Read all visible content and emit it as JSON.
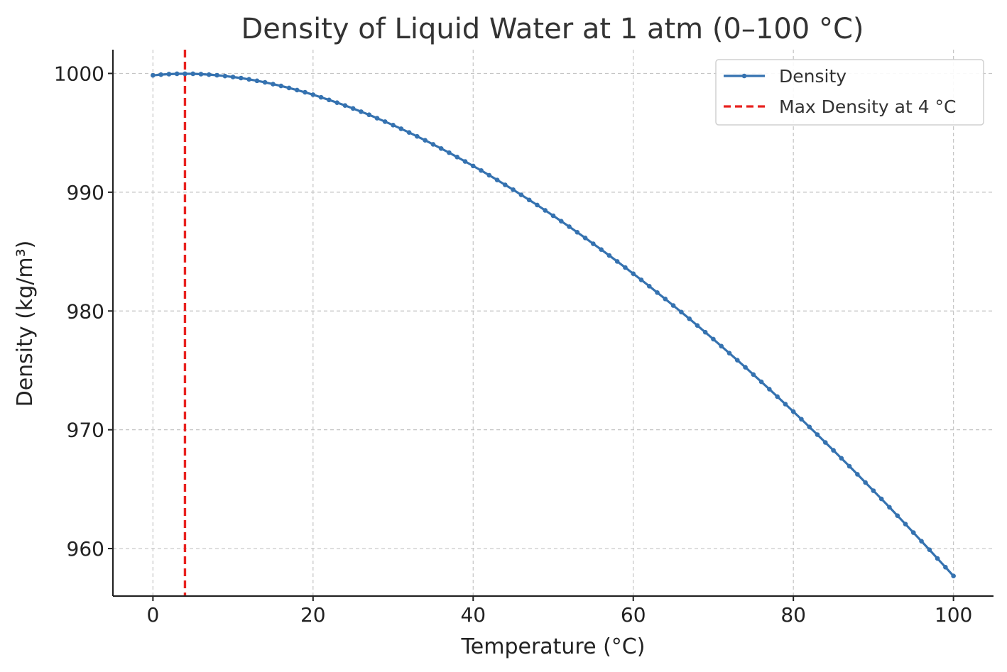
{
  "chart_data": {
    "type": "line",
    "title": "Density of Liquid Water at 1 atm (0–100 °C)",
    "xlabel": "Temperature (°C)",
    "ylabel": "Density (kg/m³)",
    "xlim": [
      -5,
      105
    ],
    "ylim": [
      956,
      1002
    ],
    "x_ticks": [
      0,
      20,
      40,
      60,
      80,
      100
    ],
    "y_ticks": [
      960,
      970,
      980,
      990,
      1000
    ],
    "x_tick_labels": [
      "0",
      "20",
      "40",
      "60",
      "80",
      "100"
    ],
    "y_tick_labels": [
      "960",
      "970",
      "980",
      "990",
      "1000"
    ],
    "grid": true,
    "legend_position": "top-right",
    "series": [
      {
        "name": "Density",
        "color": "#3572b0",
        "marker": "dot",
        "x": [
          0,
          1,
          2,
          3,
          4,
          5,
          6,
          7,
          8,
          9,
          10,
          11,
          12,
          13,
          14,
          15,
          16,
          17,
          18,
          19,
          20,
          21,
          22,
          23,
          24,
          25,
          26,
          27,
          28,
          29,
          30,
          31,
          32,
          33,
          34,
          35,
          36,
          37,
          38,
          39,
          40,
          41,
          42,
          43,
          44,
          45,
          46,
          47,
          48,
          49,
          50,
          51,
          52,
          53,
          54,
          55,
          56,
          57,
          58,
          59,
          60,
          61,
          62,
          63,
          64,
          65,
          66,
          67,
          68,
          69,
          70,
          71,
          72,
          73,
          74,
          75,
          76,
          77,
          78,
          79,
          80,
          81,
          82,
          83,
          84,
          85,
          86,
          87,
          88,
          89,
          90,
          91,
          92,
          93,
          94,
          95,
          96,
          97,
          98,
          99,
          100
        ],
        "y": [
          999.84,
          999.9,
          999.94,
          999.97,
          999.97,
          999.97,
          999.94,
          999.9,
          999.85,
          999.78,
          999.7,
          999.61,
          999.5,
          999.38,
          999.25,
          999.1,
          998.95,
          998.78,
          998.6,
          998.41,
          998.21,
          997.99,
          997.77,
          997.54,
          997.3,
          997.05,
          996.78,
          996.52,
          996.23,
          995.94,
          995.65,
          995.34,
          995.03,
          994.7,
          994.37,
          994.03,
          993.68,
          993.33,
          992.96,
          992.59,
          992.21,
          991.83,
          991.43,
          991.03,
          990.62,
          990.21,
          989.78,
          989.35,
          988.92,
          988.47,
          988.02,
          987.56,
          987.1,
          986.63,
          986.15,
          985.66,
          985.17,
          984.67,
          984.17,
          983.66,
          983.14,
          982.62,
          982.09,
          981.55,
          981.01,
          980.46,
          979.91,
          979.35,
          978.78,
          978.21,
          977.63,
          977.04,
          976.45,
          975.86,
          975.26,
          974.65,
          974.04,
          973.42,
          972.79,
          972.16,
          971.53,
          970.89,
          970.24,
          969.59,
          968.93,
          968.27,
          967.6,
          966.93,
          966.25,
          965.56,
          964.87,
          964.18,
          963.48,
          962.77,
          962.06,
          961.34,
          960.62,
          959.9,
          959.16,
          958.43,
          957.69
        ]
      },
      {
        "name": "Max Density at 4 °C",
        "color": "#e8221f",
        "style": "dashed",
        "type": "vline",
        "x": 4
      }
    ]
  }
}
